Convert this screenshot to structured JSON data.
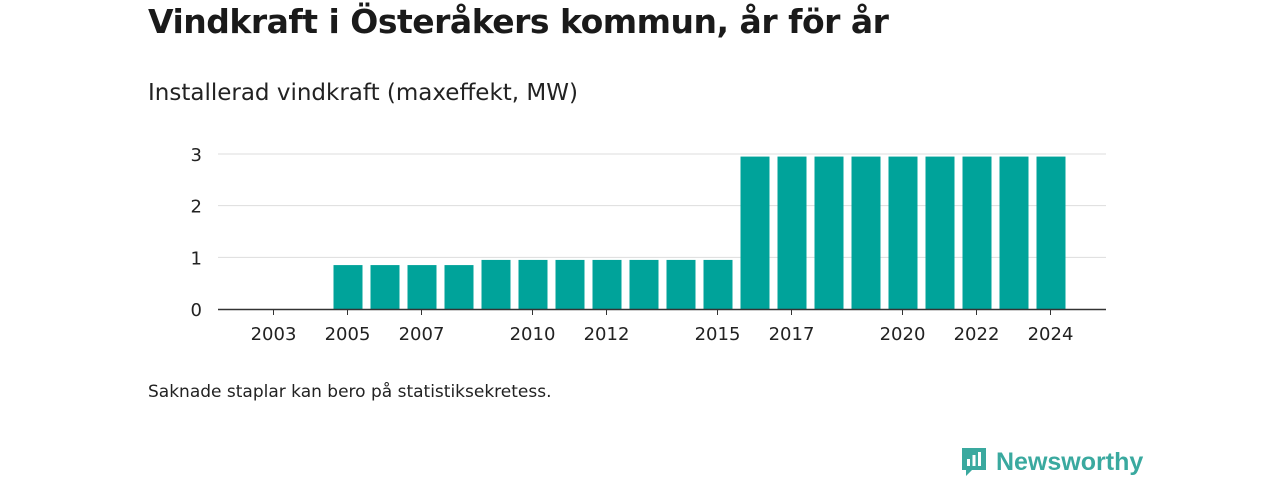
{
  "title": "Vindkraft i Österåkers kommun, år för år",
  "subtitle": "Installerad vindkraft (maxeffekt, MW)",
  "note": "Saknade staplar kan bero på statistiksekretess.",
  "brand": {
    "name": "Newsworthy",
    "icon": "newsworthy-logo-icon",
    "color": "#3aa99f"
  },
  "chart_data": {
    "type": "bar",
    "title": "Installerad vindkraft (maxeffekt, MW)",
    "xlabel": "",
    "ylabel": "",
    "ylim": [
      0,
      3
    ],
    "yticks": [
      0,
      1,
      2,
      3
    ],
    "grid": true,
    "bar_color": "#00a39a",
    "categories": [
      2003,
      2004,
      2005,
      2006,
      2007,
      2008,
      2009,
      2010,
      2011,
      2012,
      2013,
      2014,
      2015,
      2016,
      2017,
      2018,
      2019,
      2020,
      2021,
      2022,
      2023,
      2024
    ],
    "xtick_labels": [
      2003,
      2005,
      2007,
      2010,
      2012,
      2015,
      2017,
      2020,
      2022,
      2024
    ],
    "values": [
      null,
      null,
      0.85,
      0.85,
      0.85,
      0.85,
      0.95,
      0.95,
      0.95,
      0.95,
      0.95,
      0.95,
      0.95,
      2.95,
      2.95,
      2.95,
      2.95,
      2.95,
      2.95,
      2.95,
      2.95,
      2.95
    ]
  }
}
